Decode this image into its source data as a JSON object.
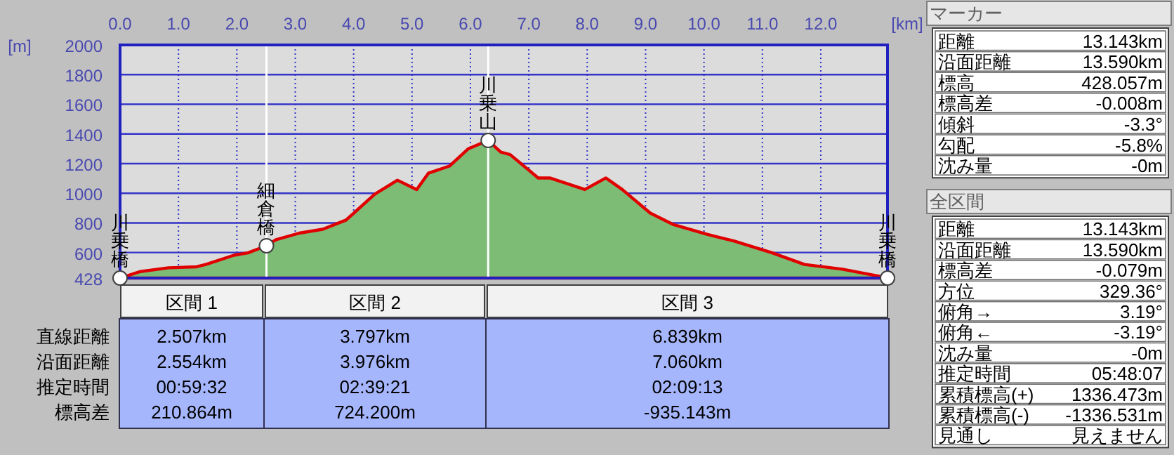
{
  "chart_data": [
    {
      "type": "area",
      "xlabel": "[km]",
      "ylabel": "[m]",
      "grid": true,
      "xlim": [
        0,
        13.143
      ],
      "ylim": [
        428,
        2000
      ],
      "xticks": [
        {
          "value": 0,
          "label": "0.0"
        },
        {
          "value": 1,
          "label": "1.0"
        },
        {
          "value": 2,
          "label": "2.0"
        },
        {
          "value": 3,
          "label": "3.0"
        },
        {
          "value": 4,
          "label": "4.0"
        },
        {
          "value": 5,
          "label": "5.0"
        },
        {
          "value": 6,
          "label": "6.0"
        },
        {
          "value": 7,
          "label": "7.0"
        },
        {
          "value": 8,
          "label": "8.0"
        },
        {
          "value": 9,
          "label": "9.0"
        },
        {
          "value": 10,
          "label": "10.0"
        },
        {
          "value": 11,
          "label": "11.0"
        },
        {
          "value": 12,
          "label": "12.0"
        }
      ],
      "yticks": [
        428,
        600,
        800,
        1000,
        1200,
        1400,
        1600,
        1800,
        2000
      ],
      "x": [
        0,
        0.35,
        0.83,
        1.31,
        1.47,
        1.95,
        2.19,
        2.507,
        2.67,
        3.07,
        3.47,
        3.87,
        4.36,
        4.75,
        5.08,
        5.28,
        5.64,
        5.96,
        6.304,
        6.52,
        6.68,
        7.16,
        7.36,
        7.96,
        8.32,
        8.6,
        9.08,
        9.48,
        10.04,
        10.52,
        11.17,
        11.72,
        12.37,
        13.0,
        13.143
      ],
      "series": [
        {
          "color": "#e00000",
          "values": [
            428,
            472,
            497,
            504,
            520,
            582,
            598,
            646,
            687,
            731,
            757,
            819,
            993,
            1088,
            1025,
            1135,
            1183,
            1299,
            1356,
            1277,
            1261,
            1103,
            1103,
            1025,
            1103,
            1025,
            866,
            788,
            724,
            677,
            598,
            520,
            488,
            440,
            428
          ]
        }
      ],
      "ref_lines": [
        {
          "axis": "x",
          "value": 2.507,
          "color": "#ffffff"
        },
        {
          "axis": "x",
          "value": 6.304,
          "color": "#ffffff"
        }
      ],
      "annotations": [
        {
          "text": "川乗橋",
          "x": 0,
          "y": 428
        },
        {
          "text": "細倉橋",
          "x": 2.507,
          "y": 646
        },
        {
          "text": "川乗山",
          "x": 6.304,
          "y": 1356
        },
        {
          "text": "川乗橋",
          "x": 13.143,
          "y": 428
        }
      ]
    },
    {
      "type": "other",
      "categories": [
        "区間 1",
        "区間 2",
        "区間 3"
      ],
      "y_categories": [
        "直線距離",
        "沿面距離",
        "推定時間",
        "標高差"
      ],
      "cell_labels": [
        [
          "2.507km",
          "3.797km",
          "6.839km"
        ],
        [
          "2.554km",
          "3.976km",
          "7.060km"
        ],
        [
          "00:59:32",
          "02:39:21",
          "02:09:13"
        ],
        [
          "210.864m",
          "724.200m",
          "-935.143m"
        ]
      ]
    },
    {
      "type": "other",
      "title": "マーカー",
      "y_categories": [
        "距離",
        "沿面距離",
        "標高",
        "標高差",
        "傾斜",
        "勾配",
        "沈み量"
      ],
      "cell_labels": [
        [
          "13.143km"
        ],
        [
          "13.590km"
        ],
        [
          "428.057m"
        ],
        [
          "-0.008m"
        ],
        [
          "-3.3°"
        ],
        [
          "-5.8%"
        ],
        [
          "-0m"
        ]
      ]
    },
    {
      "type": "other",
      "title": "全区間",
      "y_categories": [
        "距離",
        "沿面距離",
        "標高差",
        "方位",
        "俯角→",
        "俯角←",
        "沈み量",
        "推定時間",
        "累積標高(+)",
        "累積標高(-)",
        "見通し"
      ],
      "cell_labels": [
        [
          "13.143km"
        ],
        [
          "13.590km"
        ],
        [
          "-0.079m"
        ],
        [
          "329.36°"
        ],
        [
          "3.19°"
        ],
        [
          "-3.19°"
        ],
        [
          "-0m"
        ],
        [
          "05:48:07"
        ],
        [
          "1336.473m"
        ],
        [
          "-1336.531m"
        ],
        [
          "見えません"
        ]
      ]
    }
  ]
}
